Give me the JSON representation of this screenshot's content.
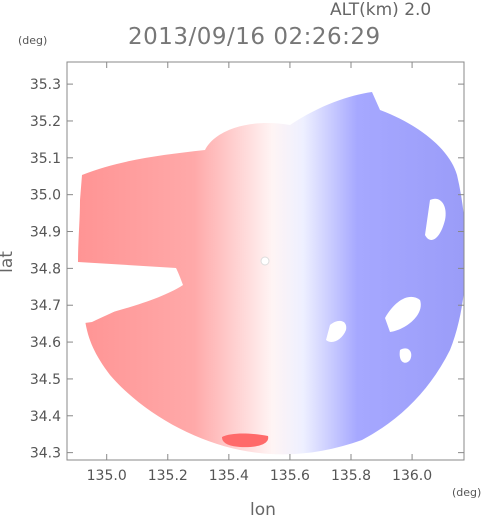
{
  "header": {
    "altitude_label": "ALT(km) 2.0",
    "timestamp": "2013/09/16 02:26:29"
  },
  "chart_data": {
    "type": "heatmap",
    "title": "2013/09/16 02:26:29",
    "xlabel": "lon",
    "ylabel": "lat",
    "x_unit": "(deg)",
    "y_unit": "(deg)",
    "xlim": [
      134.87,
      136.17
    ],
    "ylim": [
      34.28,
      35.36
    ],
    "x_ticks": [
      "135.0",
      "135.2",
      "135.4",
      "135.6",
      "135.8",
      "136.0"
    ],
    "y_ticks": [
      "34.3",
      "34.4",
      "34.5",
      "34.6",
      "34.7",
      "34.8",
      "34.9",
      "35.0",
      "35.1",
      "35.2",
      "35.3"
    ],
    "radar_center": {
      "lon": 135.52,
      "lat": 34.82
    },
    "colors": {
      "toward": "#ff8f8f",
      "away": "#8f8fff",
      "neutral": "#ffffff"
    },
    "grid": false
  }
}
